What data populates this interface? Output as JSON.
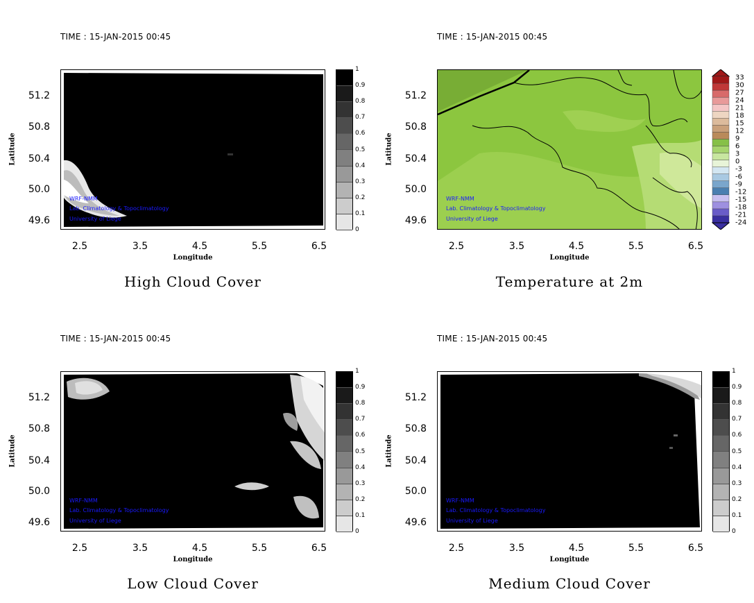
{
  "time_label": "TIME : 15-JAN-2015 00:45",
  "xlabel": "Longitude",
  "ylabel": "Latitude",
  "x_ticks": [
    "2.5",
    "3.5",
    "4.5",
    "5.5",
    "6.5"
  ],
  "y_ticks": [
    "51.2",
    "50.8",
    "50.4",
    "50.0",
    "49.6"
  ],
  "credits": [
    "WRF-NMM",
    "Lab. Climatology & Topoclimatology",
    "University of Liege"
  ],
  "cloud_scale": [
    "0",
    "0.1",
    "0.2",
    "0.3",
    "0.4",
    "0.5",
    "0.6",
    "0.7",
    "0.8",
    "0.9",
    "1"
  ],
  "temp_scale": [
    "-24",
    "-21",
    "-18",
    "-15",
    "-12",
    "-9",
    "-6",
    "-3",
    "0",
    "3",
    "6",
    "9",
    "12",
    "15",
    "18",
    "21",
    "24",
    "27",
    "30",
    "33"
  ],
  "panels": {
    "high": {
      "title": "High Cloud Cover"
    },
    "temp": {
      "title": "Temperature at 2m"
    },
    "low": {
      "title": "Low Cloud Cover"
    },
    "medium": {
      "title": "Medium Cloud Cover"
    }
  },
  "colors": {
    "field_dark": "#000000",
    "temp_green": "#8cc63f",
    "credit_blue": "#1a1aff"
  }
}
